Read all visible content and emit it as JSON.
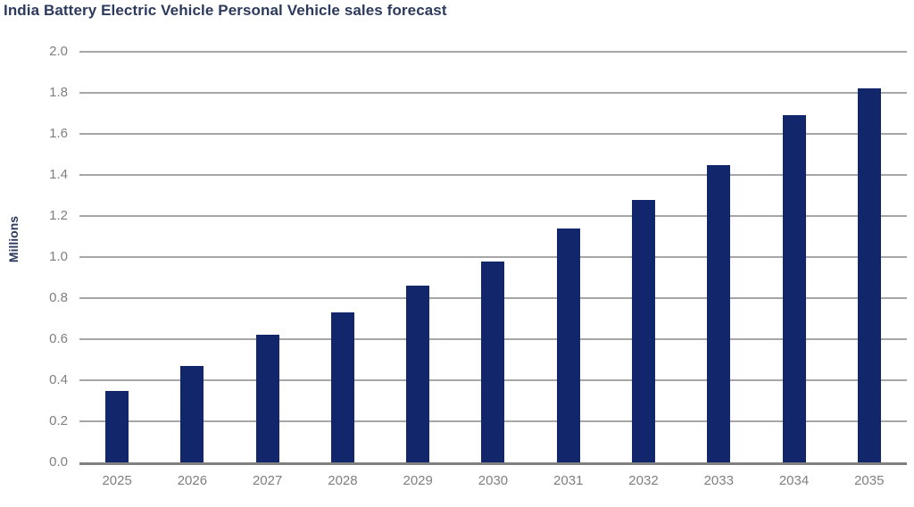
{
  "chart_data": {
    "type": "bar",
    "title": "India Battery Electric Vehicle Personal Vehicle sales forecast",
    "xlabel": "",
    "ylabel": "Millions",
    "categories": [
      "2025",
      "2026",
      "2027",
      "2028",
      "2029",
      "2030",
      "2031",
      "2032",
      "2033",
      "2034",
      "2035"
    ],
    "values": [
      0.35,
      0.47,
      0.62,
      0.73,
      0.86,
      0.98,
      1.14,
      1.28,
      1.45,
      1.69,
      1.82
    ],
    "ylim": [
      0.0,
      2.0
    ],
    "ytick_step": 0.2,
    "yticks": [
      "0.0",
      "0.2",
      "0.4",
      "0.6",
      "0.8",
      "1.0",
      "1.2",
      "1.4",
      "1.6",
      "1.8",
      "2.0"
    ],
    "grid": true,
    "legend": false,
    "colors": {
      "bar": "#12266B",
      "title": "#2C3A5E",
      "tick_text": "#7F7F7F",
      "gridline": "#A6A6A6",
      "axis_line": "#808080",
      "background": "#FFFFFF"
    }
  }
}
